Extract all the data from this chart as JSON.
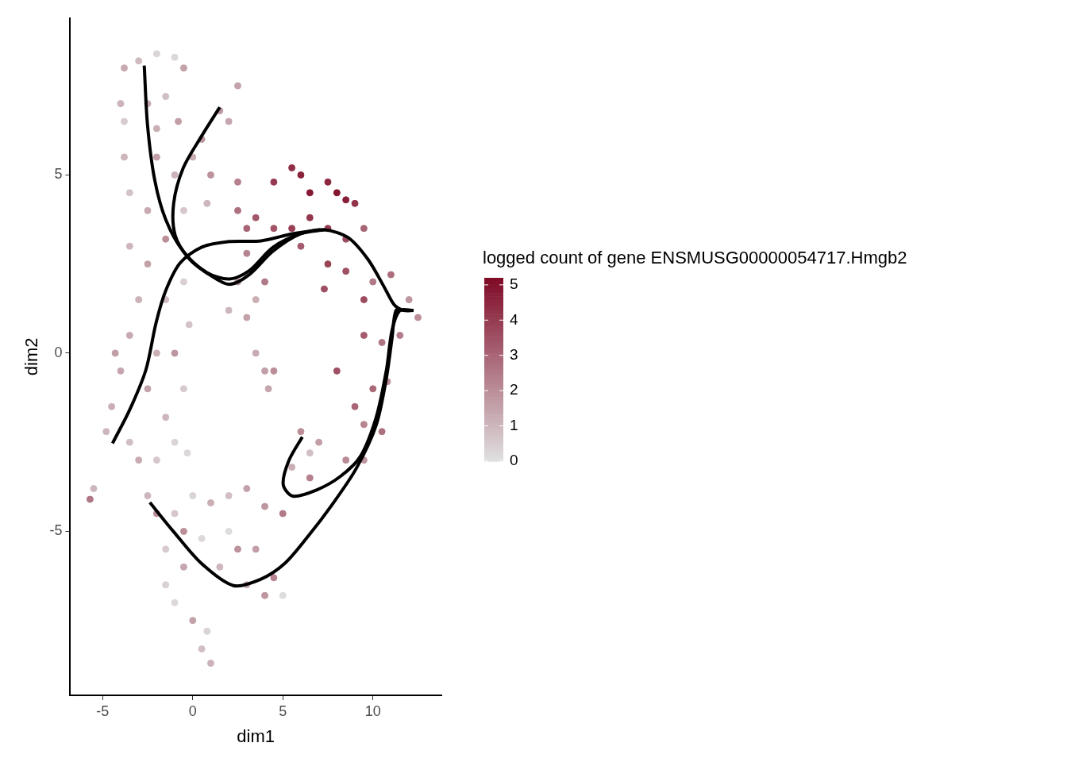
{
  "chart_data": {
    "type": "scatter",
    "xlabel": "dim1",
    "ylabel": "dim2",
    "clabel": "logged count of gene ENSMUSG00000054717.Hmgb2",
    "clim": [
      0,
      5.2
    ],
    "cticks": [
      0,
      1,
      2,
      3,
      4,
      5
    ],
    "xlim": [
      -6.8,
      13.8
    ],
    "xticks": [
      -5,
      0,
      5,
      10
    ],
    "ylim": [
      -9.6,
      9.4
    ],
    "yticks": [
      -5,
      0,
      5
    ],
    "grid": false,
    "series": [
      {
        "type": "scatter",
        "marker": "circle",
        "colors": [
          "#caafb5",
          "#cdb7bc",
          "#c6a6ae",
          "#c8aab2",
          "#cbb3b9",
          "#c4a2aa",
          "#d1bfc3",
          "#d5c7cb",
          "#dad4d5",
          "#d7cbce",
          "#be96a0",
          "#caafb5",
          "#cfbbc0",
          "#d9d0d2",
          "#c8aab2",
          "#d3c3c7",
          "#cdb7bc",
          "#c29ea7",
          "#cbb3b9",
          "#d5c7cb",
          "#cdb7bc",
          "#bb8e98",
          "#c4a2aa",
          "#cdb7bc",
          "#c8aab2",
          "#cdb7bc",
          "#b17987",
          "#dcd8d9",
          "#c29ea7",
          "#d3c3c7",
          "#c8aab2",
          "#cfbbc0",
          "#dad4d5",
          "#dcd8d9",
          "#c4a2aa",
          "#cbb3b9",
          "#c6a6ae",
          "#d1bfc3",
          "#c29ea7",
          "#d7cbce",
          "#caafb5",
          "#be96a0",
          "#c09aa3",
          "#c4a2aa",
          "#caafb5",
          "#bd929c",
          "#c6a6ae",
          "#cdb7bc",
          "#b5818e",
          "#ae717f",
          "#a86575",
          "#a2586a",
          "#953b51",
          "#902f46",
          "#8a233b",
          "#861a34",
          "#8c273f",
          "#851631",
          "#881f38",
          "#92334a",
          "#953b51",
          "#94374d",
          "#974055",
          "#9d4c5f",
          "#994458",
          "#9f5063",
          "#a45c6e",
          "#a86575",
          "#a15466",
          "#9f5063",
          "#c09aa3",
          "#c4a2aa",
          "#c8aab2",
          "#c29ea7",
          "#bb8e98",
          "#b78591",
          "#b17987",
          "#caafb5",
          "#cdb7bc",
          "#c6a6ae",
          "#b17987",
          "#ac6d7c",
          "#be96a0",
          "#bb8e98",
          "#b37d8a",
          "#b07583",
          "#aa6978",
          "#b78591",
          "#ae717f",
          "#a86575",
          "#a45c6e",
          "#9f5063",
          "#bb8e98",
          "#9d4c5f",
          "#bb8e98",
          "#c29ea7",
          "#b98a95",
          "#be96a0",
          "#b5818e",
          "#caafb5",
          "#d1bfc3",
          "#cdb7bc",
          "#bb8e98",
          "#d5c7cb",
          "#dad4d5",
          "#caafb5",
          "#d1bfc3",
          "#c4a2aa",
          "#be96a0",
          "#b17987",
          "#d7cbce",
          "#c6a6ae",
          "#dcd8d9",
          "#cdb7bc",
          "#bd929c",
          "#c29ea7",
          "#b78591",
          "#dedcdc",
          "#be96a0",
          "#c8aab2",
          "#d9d0d2",
          "#dcd8d9",
          "#c4a2aa",
          "#d1bfc3",
          "#cbb3b9",
          "#dad4d5",
          "#bb8e98",
          "#dedcdc"
        ],
        "x": [
          -4.5,
          -4.8,
          -4,
          -3.5,
          -3,
          -2.5,
          -3.5,
          -2,
          -1,
          -0.5,
          -1,
          -2,
          -1.5,
          -0.5,
          -2.5,
          -3.5,
          -3.8,
          -2,
          -1,
          -0.5,
          -3.5,
          -1.5,
          -2.5,
          -1.5,
          -3,
          -5.5,
          -5.7,
          -0.3,
          -4.3,
          -0.2,
          -3.8,
          -3,
          -2,
          -1,
          -0.5,
          -4,
          -2.5,
          -1.5,
          -0.8,
          -3.8,
          -2,
          0.5,
          1.5,
          2.5,
          0,
          1,
          2,
          0.8,
          2.5,
          2.5,
          3,
          3.5,
          4.5,
          5.5,
          6,
          6.5,
          7.5,
          8,
          8.5,
          9,
          7.5,
          6.5,
          5.5,
          8.5,
          7.5,
          8.5,
          6,
          9.5,
          4.5,
          7.3,
          2.5,
          3,
          3.5,
          4,
          4.5,
          3,
          4,
          3.5,
          2,
          4.2,
          10,
          11,
          12,
          12.5,
          11.5,
          10.5,
          10,
          9.5,
          10.5,
          9,
          9.5,
          8,
          10.8,
          9.5,
          6,
          7,
          8.5,
          9.5,
          6.5,
          5.5,
          6.5,
          -2.5,
          -2,
          -1,
          0,
          1,
          2,
          3,
          4,
          5,
          -1.5,
          -0.5,
          0.5,
          1.5,
          2.5,
          3.5,
          4.5,
          5,
          4,
          3,
          -1.5,
          -1,
          0,
          0.5,
          1,
          0.8,
          -0.5,
          2
        ],
        "values": [
          -1.5,
          -2.2,
          -0.5,
          0.5,
          1.5,
          2.5,
          -2.5,
          -3,
          -2.5,
          -1,
          0,
          0,
          1.5,
          2,
          4,
          4.5,
          5.5,
          5.5,
          5,
          4,
          3,
          3.2,
          -1,
          -1.8,
          -3,
          -3.8,
          -4.1,
          -2.8,
          0,
          0.8,
          8,
          8.2,
          8.4,
          8.3,
          8,
          7,
          7,
          7.2,
          6.5,
          6.5,
          6.3,
          6,
          6.8,
          7.5,
          5.5,
          5,
          6.5,
          4.2,
          4.8,
          4,
          3.5,
          3.8,
          4.8,
          5.2,
          5,
          4.5,
          4.8,
          4.5,
          4.3,
          4.2,
          3.5,
          3.8,
          3.5,
          3.2,
          2.5,
          2.3,
          3,
          3.5,
          3.5,
          1.8,
          2,
          1,
          0,
          -0.5,
          -0.5,
          2.8,
          2,
          1.5,
          1.2,
          -1,
          2,
          2.2,
          1.5,
          1,
          0.5,
          0.3,
          -1,
          -2,
          -2.2,
          -1.5,
          0.5,
          -0.5,
          -0.8,
          1.5,
          -2.2,
          -2.5,
          -3,
          -3,
          -3.5,
          -3.2,
          -2.8,
          -4,
          -4.5,
          -4.5,
          -4,
          -4.2,
          -4,
          -3.8,
          -4.3,
          -4.5,
          -5.5,
          -6,
          -5.2,
          -6,
          -5.5,
          -5.5,
          -6.3,
          -6.8,
          -6.8,
          -6.5,
          -6.5,
          -7,
          -7.5,
          -8.3,
          -8.7,
          -7.8,
          -5,
          -5
        ],
        "cvalues": [
          1.2,
          1,
          1.4,
          1.3,
          1.1,
          1.5,
          0.8,
          0.6,
          0.3,
          0.5,
          1.8,
          1.2,
          0.9,
          0.4,
          1.3,
          0.7,
          1,
          1.6,
          1.1,
          0.6,
          1,
          2,
          1.5,
          1,
          1.3,
          1,
          2.5,
          0.2,
          1.6,
          0.7,
          1.3,
          0.9,
          0.3,
          0.2,
          1.5,
          1.1,
          1.4,
          0.8,
          1.6,
          0.5,
          1.2,
          1.8,
          1.7,
          1.5,
          1.2,
          1.9,
          1.4,
          1,
          2.3,
          2.7,
          3,
          3.3,
          4,
          4.3,
          4.6,
          4.8,
          4.5,
          4.9,
          4.7,
          4.2,
          4,
          4.1,
          3.9,
          3.6,
          3.8,
          3.5,
          3.2,
          3,
          3.4,
          3.5,
          1.7,
          1.5,
          1.3,
          1.6,
          2,
          2.2,
          2.5,
          1.2,
          1,
          1.4,
          2.5,
          2.8,
          1.8,
          2,
          2.4,
          2.6,
          2.9,
          2.2,
          2.7,
          3,
          3.2,
          3.5,
          2,
          3.6,
          2,
          1.6,
          2.1,
          1.8,
          2.3,
          1.2,
          0.8,
          1,
          2,
          0.6,
          0.3,
          1.2,
          0.8,
          1.5,
          1.8,
          2.5,
          0.5,
          1.4,
          0.2,
          1,
          1.9,
          1.6,
          2.2,
          0.1,
          1.8,
          1.3,
          0.4,
          0.2,
          1.5,
          0.8,
          1.1,
          0.3,
          2,
          0.1
        ]
      },
      {
        "type": "line",
        "marker": "none",
        "line_style": "solid",
        "color": "#000000",
        "x": [
          -2.69,
          -2.51,
          -2.11,
          -1.5,
          -0.53,
          0.79,
          2.03,
          3.13,
          4.45,
          5.99,
          7.31,
          8.63,
          9.74,
          10.62,
          11.19,
          11.72,
          12.25
        ],
        "values": [
          8.07,
          6.41,
          4.86,
          3.75,
          2.86,
          2.26,
          2.08,
          2.31,
          2.97,
          3.35,
          3.46,
          3.24,
          2.62,
          1.86,
          1.35,
          1.2,
          1.2
        ]
      },
      {
        "type": "line",
        "marker": "none",
        "line_style": "solid",
        "color": "#000000",
        "x": [
          1.5,
          0.48,
          -0.53,
          -1.06,
          -0.97,
          -0.18,
          0.93,
          2.03,
          3.13,
          4.45,
          5.99,
          7.31
        ],
        "values": [
          6.9,
          6.08,
          5.19,
          4.19,
          3.3,
          2.64,
          2.2,
          1.93,
          2.2,
          2.86,
          3.35,
          3.46
        ]
      },
      {
        "type": "line",
        "marker": "none",
        "line_style": "solid",
        "color": "#000000",
        "x": [
          -4.45,
          -3.48,
          -2.6,
          -2.03,
          -1.5,
          -0.7,
          0.48,
          2.03,
          3.79,
          5.55,
          7.09
        ],
        "values": [
          -2.53,
          -1.57,
          -0.47,
          0.86,
          1.75,
          2.53,
          2.97,
          3.13,
          3.15,
          3.35,
          3.46
        ]
      },
      {
        "type": "line",
        "marker": "none",
        "line_style": "solid",
        "color": "#000000",
        "x": [
          -2.38,
          -1.06,
          0.48,
          2.25,
          3.79,
          5.11,
          6.43,
          7.75,
          9.07,
          10.18,
          10.75,
          11.06,
          11.28,
          11.72,
          12.25
        ],
        "values": [
          -4.19,
          -5.01,
          -5.9,
          -6.52,
          -6.34,
          -5.9,
          -5.12,
          -4.24,
          -3.24,
          -2.02,
          -0.69,
          0.42,
          1.2,
          1.2,
          1.2
        ]
      },
      {
        "type": "line",
        "marker": "none",
        "line_style": "solid",
        "color": "#000000",
        "x": [
          6.08,
          5.33,
          5.02,
          5.55,
          6.87,
          8.19,
          9.3,
          10.18,
          10.75,
          11.06,
          11.5,
          12.25
        ],
        "values": [
          -2.35,
          -3.02,
          -3.68,
          -4.01,
          -3.84,
          -3.46,
          -2.9,
          -1.8,
          -0.47,
          0.64,
          1.2,
          1.2
        ]
      }
    ]
  }
}
